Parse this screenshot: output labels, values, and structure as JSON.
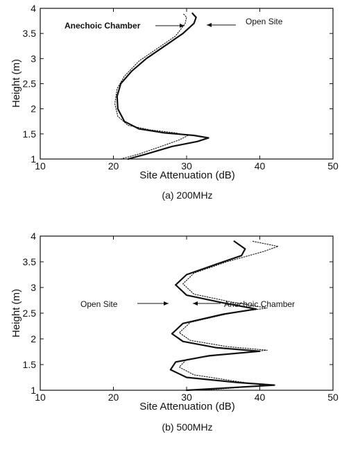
{
  "chart_data": [
    {
      "type": "line",
      "caption": "(a) 200MHz",
      "xlabel": "Site Attenuation (dB)",
      "ylabel": "Height (m)",
      "xlim": [
        10,
        50
      ],
      "ylim": [
        1,
        4
      ],
      "xticks": [
        "10",
        "20",
        "30",
        "40",
        "50"
      ],
      "yticks": [
        "1",
        "1.5",
        "2",
        "2.5",
        "3",
        "3.5",
        "4"
      ],
      "grid": false,
      "series": [
        {
          "name": "Open Site",
          "style": "solid",
          "points": [
            [
              22.0,
              1.0
            ],
            [
              24.5,
              1.1
            ],
            [
              28.0,
              1.25
            ],
            [
              31.5,
              1.35
            ],
            [
              33.0,
              1.42
            ],
            [
              31.0,
              1.47
            ],
            [
              27.0,
              1.52
            ],
            [
              23.5,
              1.6
            ],
            [
              21.5,
              1.75
            ],
            [
              20.6,
              2.0
            ],
            [
              20.5,
              2.25
            ],
            [
              21.0,
              2.5
            ],
            [
              22.5,
              2.75
            ],
            [
              24.5,
              3.0
            ],
            [
              27.0,
              3.25
            ],
            [
              29.5,
              3.5
            ],
            [
              31.0,
              3.7
            ],
            [
              31.3,
              3.82
            ],
            [
              30.8,
              3.9
            ]
          ]
        },
        {
          "name": "Anechoic Chamber",
          "style": "dotted",
          "points": [
            [
              21.0,
              1.0
            ],
            [
              23.5,
              1.1
            ],
            [
              26.5,
              1.25
            ],
            [
              29.0,
              1.38
            ],
            [
              30.2,
              1.47
            ],
            [
              28.5,
              1.52
            ],
            [
              25.0,
              1.58
            ],
            [
              22.0,
              1.67
            ],
            [
              20.6,
              1.85
            ],
            [
              20.2,
              2.1
            ],
            [
              20.5,
              2.4
            ],
            [
              21.5,
              2.65
            ],
            [
              23.5,
              2.95
            ],
            [
              26.0,
              3.2
            ],
            [
              28.5,
              3.45
            ],
            [
              29.8,
              3.7
            ],
            [
              30.0,
              3.82
            ],
            [
              29.5,
              3.9
            ]
          ]
        }
      ],
      "annotations": [
        {
          "text": "Anechoic Chamber",
          "target": "Anechoic Chamber"
        },
        {
          "text": "Open Site",
          "target": "Open Site"
        }
      ]
    },
    {
      "type": "line",
      "caption": "(b) 500MHz",
      "xlabel": "Site Attenuation (dB)",
      "ylabel": "Height (m)",
      "xlim": [
        10,
        50
      ],
      "ylim": [
        1,
        4
      ],
      "xticks": [
        "10",
        "20",
        "30",
        "40",
        "50"
      ],
      "yticks": [
        "1",
        "1.5",
        "2",
        "2.5",
        "3",
        "3.5",
        "4"
      ],
      "grid": false,
      "series": [
        {
          "name": "Open Site",
          "style": "solid",
          "points": [
            [
              30.0,
              1.0
            ],
            [
              36.0,
              1.05
            ],
            [
              42.0,
              1.1
            ],
            [
              37.0,
              1.15
            ],
            [
              30.0,
              1.25
            ],
            [
              27.8,
              1.4
            ],
            [
              28.5,
              1.55
            ],
            [
              33.0,
              1.67
            ],
            [
              40.0,
              1.76
            ],
            [
              34.0,
              1.83
            ],
            [
              29.5,
              1.95
            ],
            [
              28.0,
              2.1
            ],
            [
              29.5,
              2.3
            ],
            [
              35.0,
              2.48
            ],
            [
              39.5,
              2.58
            ],
            [
              35.0,
              2.7
            ],
            [
              30.0,
              2.85
            ],
            [
              28.5,
              3.05
            ],
            [
              30.0,
              3.25
            ],
            [
              34.0,
              3.45
            ],
            [
              37.5,
              3.62
            ],
            [
              38.0,
              3.75
            ],
            [
              36.5,
              3.9
            ]
          ]
        },
        {
          "name": "Anechoic Chamber",
          "style": "dotted",
          "points": [
            [
              32.0,
              1.0
            ],
            [
              37.0,
              1.05
            ],
            [
              40.5,
              1.1
            ],
            [
              36.5,
              1.18
            ],
            [
              31.0,
              1.3
            ],
            [
              29.0,
              1.45
            ],
            [
              30.0,
              1.6
            ],
            [
              35.0,
              1.7
            ],
            [
              41.0,
              1.78
            ],
            [
              35.5,
              1.85
            ],
            [
              30.5,
              1.97
            ],
            [
              29.0,
              2.12
            ],
            [
              30.5,
              2.32
            ],
            [
              36.0,
              2.5
            ],
            [
              41.0,
              2.6
            ],
            [
              36.0,
              2.72
            ],
            [
              31.0,
              2.87
            ],
            [
              29.5,
              3.07
            ],
            [
              31.0,
              3.28
            ],
            [
              35.5,
              3.5
            ],
            [
              40.5,
              3.7
            ],
            [
              42.5,
              3.8
            ],
            [
              39.0,
              3.9
            ]
          ]
        }
      ],
      "annotations": [
        {
          "text": "Open Site",
          "target": "Open Site"
        },
        {
          "text": "Anechoic Chamber",
          "target": "Anechoic Chamber"
        }
      ]
    }
  ]
}
